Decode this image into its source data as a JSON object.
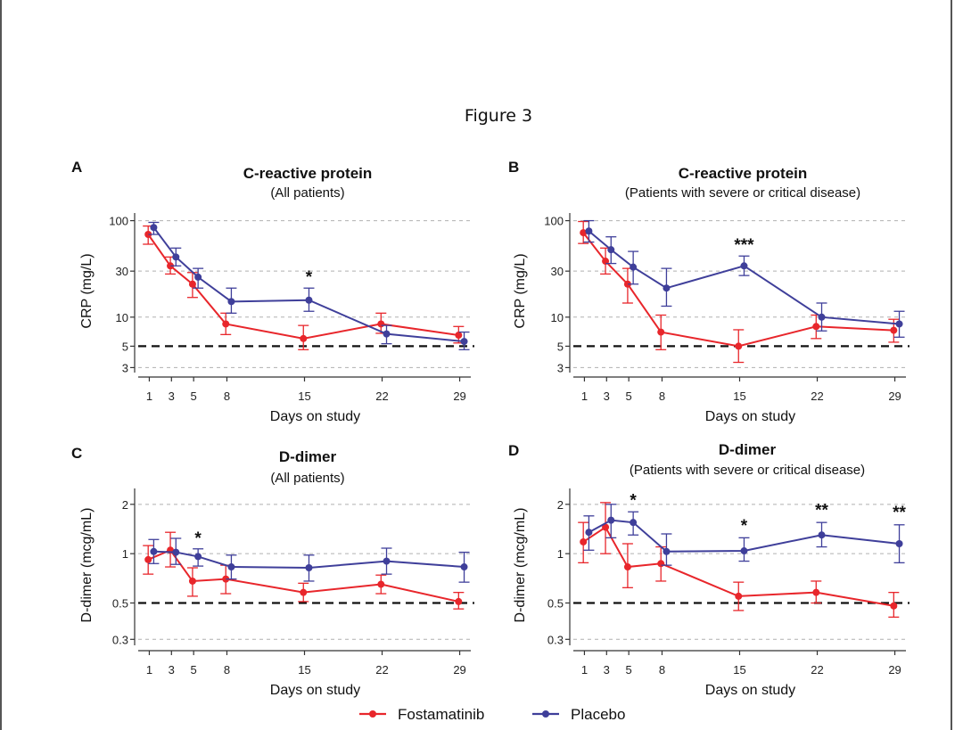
{
  "figure_title": "Figure 3",
  "colors": {
    "fostamatinib": "#e8262b",
    "placebo": "#3f3f9a",
    "grid": "#b0b0b0",
    "reference": "#111111"
  },
  "legend": [
    {
      "label": "Fostamatinib",
      "series": "fostamatinib"
    },
    {
      "label": "Placebo",
      "series": "placebo"
    }
  ],
  "chart_data": [
    {
      "letter": "A",
      "type": "line",
      "title": "C-reactive protein",
      "subtitle": "(All patients)",
      "xlabel": "Days on study",
      "ylabel": "CRP (mg/L)",
      "yscale": "log",
      "ylim": [
        2.9,
        120
      ],
      "xlim": [
        0,
        30
      ],
      "xticks": [
        1,
        3,
        5,
        8,
        15,
        22,
        29
      ],
      "yticks": [
        {
          "value": 3,
          "label": "3"
        },
        {
          "value": 5,
          "label": "5"
        },
        {
          "value": 10,
          "label": "10"
        },
        {
          "value": 30,
          "label": "30"
        },
        {
          "value": 100,
          "label": "100"
        }
      ],
      "gridlines": [
        3,
        10,
        30,
        100
      ],
      "reference_line": 5,
      "series": [
        {
          "name": "Fostamatinib",
          "key": "fostamatinib",
          "x": [
            0.9,
            2.9,
            4.9,
            7.9,
            14.9,
            21.9,
            28.9
          ],
          "y": [
            72,
            34,
            22,
            8.5,
            6,
            8.5,
            6.5
          ],
          "lo": [
            57,
            28,
            16,
            6.6,
            4.6,
            6.8,
            5.4
          ],
          "hi": [
            88,
            42,
            29,
            11,
            8.2,
            11,
            8
          ]
        },
        {
          "name": "Placebo",
          "key": "placebo",
          "x": [
            1.4,
            3.4,
            5.4,
            8.4,
            15.4,
            22.4,
            29.4
          ],
          "y": [
            85,
            42,
            26,
            14.5,
            15,
            6.7,
            5.6
          ],
          "lo": [
            72,
            34,
            20,
            11,
            11.5,
            5.3,
            4.6
          ],
          "hi": [
            96,
            52,
            32,
            20,
            20,
            8.2,
            7
          ]
        }
      ],
      "annotations": [
        {
          "x": 15.4,
          "y": 20,
          "text": "*"
        }
      ]
    },
    {
      "letter": "B",
      "type": "line",
      "title": "C-reactive protein",
      "subtitle": "(Patients with severe or critical disease)",
      "xlabel": "Days on study",
      "ylabel": "CRP (mg/L)",
      "yscale": "log",
      "ylim": [
        2.9,
        120
      ],
      "xlim": [
        0,
        30
      ],
      "xticks": [
        1,
        3,
        5,
        8,
        15,
        22,
        29
      ],
      "yticks": [
        {
          "value": 3,
          "label": "3"
        },
        {
          "value": 5,
          "label": "5"
        },
        {
          "value": 10,
          "label": "10"
        },
        {
          "value": 30,
          "label": "30"
        },
        {
          "value": 100,
          "label": "100"
        }
      ],
      "gridlines": [
        3,
        10,
        30,
        100
      ],
      "reference_line": 5,
      "series": [
        {
          "name": "Fostamatinib",
          "key": "fostamatinib",
          "x": [
            0.9,
            2.9,
            4.9,
            7.9,
            14.9,
            21.9,
            28.9
          ],
          "y": [
            75,
            38,
            22,
            7,
            5,
            8,
            7.3
          ],
          "lo": [
            58,
            28,
            14,
            4.6,
            3.4,
            6,
            5.5
          ],
          "hi": [
            98,
            52,
            32,
            10.5,
            7.4,
            10.5,
            9.5
          ]
        },
        {
          "name": "Placebo",
          "key": "placebo",
          "x": [
            1.4,
            3.4,
            5.4,
            8.4,
            15.4,
            22.4,
            29.4
          ],
          "y": [
            78,
            50,
            33,
            20,
            34,
            10,
            8.5
          ],
          "lo": [
            60,
            36,
            22,
            13,
            27,
            7.2,
            6.2
          ],
          "hi": [
            100,
            68,
            48,
            32,
            43,
            14,
            11.5
          ]
        }
      ],
      "annotations": [
        {
          "x": 15.4,
          "y": 43,
          "text": "***"
        }
      ]
    },
    {
      "letter": "C",
      "type": "line",
      "title": "D-dimer",
      "subtitle": "(All patients)",
      "xlabel": "Days on study",
      "ylabel": "D-dimer (mcg/mL)",
      "yscale": "log",
      "ylim": [
        0.29,
        2.5
      ],
      "xlim": [
        0,
        30
      ],
      "xticks": [
        1,
        3,
        5,
        8,
        15,
        22,
        29
      ],
      "yticks": [
        {
          "value": 0.3,
          "label": "0.3"
        },
        {
          "value": 0.5,
          "label": "0.5"
        },
        {
          "value": 1,
          "label": "1"
        },
        {
          "value": 2,
          "label": "2"
        }
      ],
      "gridlines": [
        0.3,
        1,
        2
      ],
      "reference_line": 0.5,
      "series": [
        {
          "name": "Fostamatinib",
          "key": "fostamatinib",
          "x": [
            0.9,
            2.9,
            4.9,
            7.9,
            14.9,
            21.9,
            28.9
          ],
          "y": [
            0.92,
            1.05,
            0.68,
            0.7,
            0.58,
            0.65,
            0.51
          ],
          "lo": [
            0.75,
            0.83,
            0.55,
            0.57,
            0.51,
            0.57,
            0.46
          ],
          "hi": [
            1.12,
            1.35,
            0.82,
            0.85,
            0.66,
            0.74,
            0.58
          ]
        },
        {
          "name": "Placebo",
          "key": "placebo",
          "x": [
            1.4,
            3.4,
            5.4,
            8.4,
            15.4,
            22.4,
            29.4
          ],
          "y": [
            1.03,
            1.02,
            0.96,
            0.83,
            0.82,
            0.9,
            0.83
          ],
          "lo": [
            0.87,
            0.86,
            0.84,
            0.7,
            0.68,
            0.75,
            0.67
          ],
          "hi": [
            1.22,
            1.24,
            1.07,
            0.98,
            0.98,
            1.08,
            1.02
          ]
        }
      ],
      "annotations": [
        {
          "x": 5.4,
          "y": 1.07,
          "text": "*"
        }
      ]
    },
    {
      "letter": "D",
      "type": "line",
      "title": "D-dimer",
      "subtitle": "(Patients with severe or critical disease)",
      "xlabel": "Days on study",
      "ylabel": "D-dimer (mcg/mL)",
      "yscale": "log",
      "ylim": [
        0.29,
        2.5
      ],
      "xlim": [
        0,
        30
      ],
      "xticks": [
        1,
        3,
        5,
        8,
        15,
        22,
        29
      ],
      "yticks": [
        {
          "value": 0.3,
          "label": "0.3"
        },
        {
          "value": 0.5,
          "label": "0.5"
        },
        {
          "value": 1,
          "label": "1"
        },
        {
          "value": 2,
          "label": "2"
        }
      ],
      "gridlines": [
        0.3,
        1,
        2
      ],
      "reference_line": 0.5,
      "series": [
        {
          "name": "Fostamatinib",
          "key": "fostamatinib",
          "x": [
            0.9,
            2.9,
            4.9,
            7.9,
            14.9,
            21.9,
            28.9
          ],
          "y": [
            1.18,
            1.45,
            0.83,
            0.87,
            0.55,
            0.58,
            0.48
          ],
          "lo": [
            0.88,
            1.0,
            0.62,
            0.68,
            0.45,
            0.5,
            0.41
          ],
          "hi": [
            1.55,
            2.05,
            1.15,
            1.1,
            0.67,
            0.68,
            0.58
          ]
        },
        {
          "name": "Placebo",
          "key": "placebo",
          "x": [
            1.4,
            3.4,
            5.4,
            8.4,
            15.4,
            22.4,
            29.4
          ],
          "y": [
            1.35,
            1.6,
            1.55,
            1.03,
            1.04,
            1.3,
            1.15
          ],
          "lo": [
            1.05,
            1.25,
            1.3,
            0.85,
            0.9,
            1.1,
            0.88
          ],
          "hi": [
            1.7,
            2.0,
            1.8,
            1.32,
            1.25,
            1.55,
            1.5
          ]
        }
      ],
      "annotations": [
        {
          "x": 5.4,
          "y": 1.82,
          "text": "*"
        },
        {
          "x": 15.4,
          "y": 1.27,
          "text": "*"
        },
        {
          "x": 22.4,
          "y": 1.58,
          "text": "**"
        },
        {
          "x": 29.4,
          "y": 1.53,
          "text": "**"
        }
      ]
    }
  ]
}
